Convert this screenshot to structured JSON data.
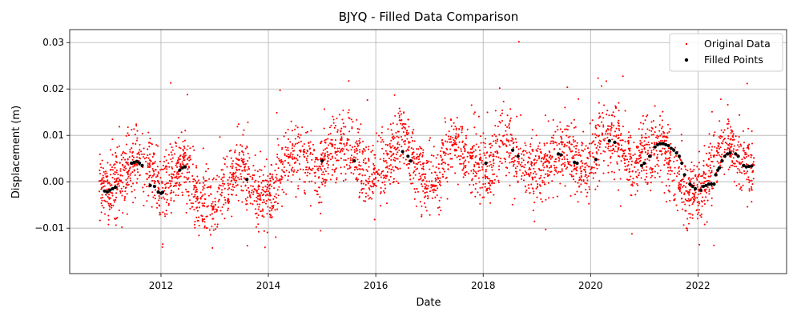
{
  "chart_data": {
    "type": "scatter",
    "title": "BJYQ - Filled Data Comparison",
    "xlabel": "Date",
    "ylabel": "Displacement (m)",
    "x_tick_labels": [
      "2012",
      "2014",
      "2016",
      "2018",
      "2020",
      "2022"
    ],
    "y_tick_labels": [
      "−0.01",
      "0.00",
      "0.01",
      "0.02",
      "0.03"
    ],
    "xlim": [
      2010.3,
      2023.65
    ],
    "ylim": [
      -0.0198,
      0.0328
    ],
    "grid": true,
    "legend_position": "top-right",
    "original_color": "#ff0000",
    "filled_color": "#000000",
    "original_data_summary": {
      "name": "Original Data",
      "marker": "small dot",
      "x_start": 2010.85,
      "x_end": 2023.05,
      "approx_points": 3800,
      "trend_x": [
        2010.85,
        2011.0,
        2011.5,
        2011.8,
        2012.0,
        2012.4,
        2012.7,
        2013.0,
        2013.5,
        2013.8,
        2014.0,
        2014.3,
        2014.6,
        2014.9,
        2015.2,
        2015.5,
        2015.9,
        2016.2,
        2016.5,
        2016.8,
        2017.1,
        2017.4,
        2017.8,
        2018.1,
        2018.4,
        2018.7,
        2019.0,
        2019.3,
        2019.6,
        2019.9,
        2020.2,
        2020.5,
        2020.8,
        2021.0,
        2021.3,
        2021.6,
        2021.8,
        2022.1,
        2022.4,
        2022.6,
        2022.8,
        2023.05
      ],
      "trend_y": [
        0.0,
        -0.002,
        0.005,
        0.003,
        -0.003,
        0.005,
        -0.004,
        -0.005,
        0.004,
        -0.003,
        -0.004,
        0.004,
        0.006,
        0.002,
        0.006,
        0.008,
        0.0,
        0.004,
        0.01,
        0.002,
        0.0,
        0.008,
        0.004,
        0.002,
        0.01,
        0.004,
        0.002,
        0.006,
        0.007,
        0.002,
        0.01,
        0.009,
        0.003,
        0.007,
        0.007,
        0.002,
        -0.003,
        -0.002,
        0.008,
        0.008,
        0.004,
        0.003
      ]
    },
    "filled_points_summary": {
      "name": "Filled Points",
      "marker": "dot",
      "x": [
        2010.95,
        2011.0,
        2011.05,
        2011.1,
        2011.15,
        2011.45,
        2011.5,
        2011.55,
        2011.6,
        2011.65,
        2011.8,
        2011.88,
        2011.95,
        2012.0,
        2012.03,
        2012.35,
        2012.4,
        2012.45,
        2013.6,
        2015.0,
        2015.6,
        2016.5,
        2016.6,
        2016.65,
        2018.05,
        2018.55,
        2018.65,
        2019.4,
        2019.45,
        2019.7,
        2019.75,
        2020.1,
        2020.35,
        2020.45,
        2020.95,
        2021.0,
        2021.1,
        2021.2,
        2021.25,
        2021.3,
        2021.35,
        2021.4,
        2021.45,
        2021.5,
        2021.55,
        2021.6,
        2021.65,
        2021.7,
        2021.75,
        2021.85,
        2021.9,
        2021.95,
        2022.05,
        2022.1,
        2022.15,
        2022.2,
        2022.25,
        2022.3,
        2022.33,
        2022.37,
        2022.4,
        2022.45,
        2022.5,
        2022.55,
        2022.6,
        2022.7,
        2022.75,
        2022.85,
        2022.9,
        2022.95,
        2023.0
      ],
      "y": [
        -0.002,
        -0.0022,
        -0.0018,
        -0.0015,
        -0.0012,
        0.004,
        0.0042,
        0.0044,
        0.004,
        0.0035,
        -0.0008,
        -0.001,
        -0.0022,
        -0.0025,
        -0.0023,
        0.0025,
        0.003,
        0.0032,
        0.0005,
        0.0045,
        0.0045,
        0.0065,
        0.0055,
        0.0045,
        0.004,
        0.0068,
        0.0055,
        0.006,
        0.0058,
        0.0042,
        0.004,
        0.0048,
        0.0088,
        0.0085,
        0.0035,
        0.004,
        0.0055,
        0.0075,
        0.008,
        0.0082,
        0.0082,
        0.008,
        0.0078,
        0.0072,
        0.0068,
        0.0062,
        0.0055,
        0.004,
        0.0015,
        -0.0005,
        -0.001,
        -0.0015,
        -0.0018,
        -0.001,
        -0.0008,
        -0.0005,
        -0.0005,
        -0.0005,
        0.0015,
        0.0025,
        0.003,
        0.0045,
        0.0055,
        0.006,
        0.0062,
        0.006,
        0.0055,
        0.0035,
        0.0032,
        0.0033,
        0.0034
      ]
    }
  }
}
